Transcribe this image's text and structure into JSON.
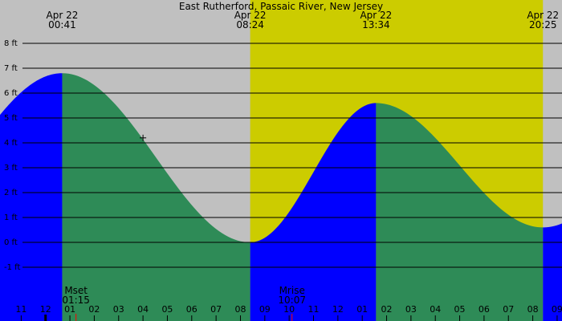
{
  "chart_data": {
    "type": "area",
    "title": "East Rutherford, Passaic River, New Jersey",
    "y_unit": "ft",
    "ylim": [
      -2,
      8.6
    ],
    "yticks": [
      -1,
      0,
      1,
      2,
      3,
      4,
      5,
      6,
      7,
      8
    ],
    "ytick_labels": [
      "-1 ft",
      "0 ft",
      "1 ft",
      "2 ft",
      "3 ft",
      "4 ft",
      "5 ft",
      "6 ft",
      "7 ft",
      "8 ft"
    ],
    "x_start_hour": -1.87,
    "x_end_hour": 21.2,
    "hour_ticks": [
      -1,
      0,
      1,
      2,
      3,
      4,
      5,
      6,
      7,
      8,
      9,
      10,
      11,
      12,
      13,
      14,
      15,
      16,
      17,
      18,
      19,
      20,
      21
    ],
    "hour_labels": [
      "11",
      "12",
      "01",
      "02",
      "03",
      "04",
      "05",
      "06",
      "07",
      "08",
      "09",
      "10",
      "11",
      "12",
      "01",
      "02",
      "03",
      "04",
      "05",
      "06",
      "07",
      "08",
      "09"
    ],
    "events_top": [
      {
        "date": "Apr 22",
        "time": "00:41",
        "hour": 0.683
      },
      {
        "date": "Apr 22",
        "time": "08:24",
        "hour": 8.4
      },
      {
        "date": "Apr 22",
        "time": "13:34",
        "hour": 13.567
      },
      {
        "date": "Apr 22",
        "time": "20:25",
        "hour": 20.417
      }
    ],
    "daylight": {
      "sunrise_hour": 8.4,
      "sunset_hour": 20.417
    },
    "tide_extremes": [
      {
        "hour": 0.683,
        "height": 6.8,
        "type": "high"
      },
      {
        "hour": 8.4,
        "height": 0.0,
        "type": "low"
      },
      {
        "hour": 13.567,
        "height": 5.6,
        "type": "high"
      },
      {
        "hour": 20.417,
        "height": 0.6,
        "type": "low"
      }
    ],
    "tide_colors": {
      "rising": "#0000ff",
      "falling": "#2e8b57"
    },
    "day_color": "#cccc00",
    "night_color": "#c0c0c0",
    "moon": [
      {
        "label": "Mset",
        "time": "01:15",
        "hour": 1.25
      },
      {
        "label": "Mrise",
        "time": "10:07",
        "hour": 10.117
      }
    ],
    "marker": {
      "hour": 4.0,
      "height": 4.2
    },
    "grid": true
  }
}
